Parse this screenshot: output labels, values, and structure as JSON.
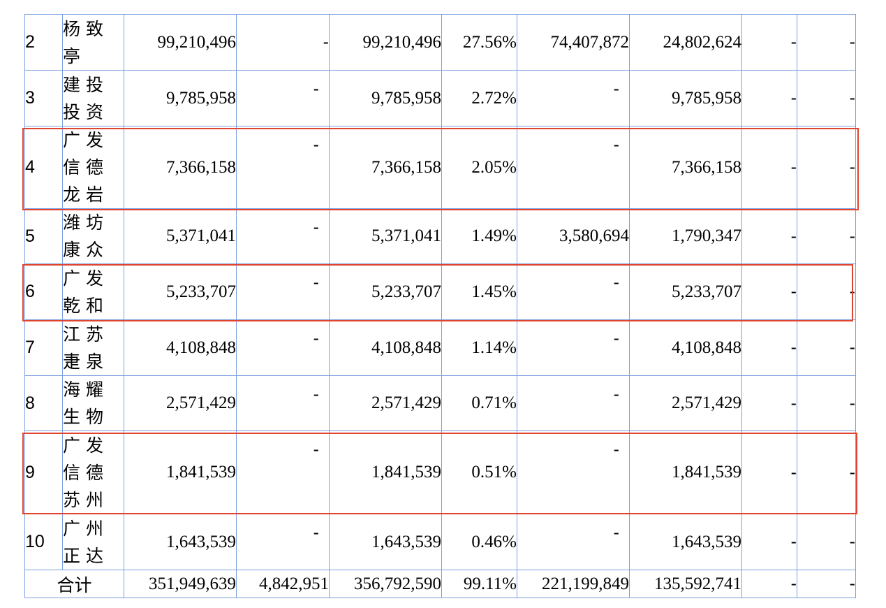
{
  "rows": [
    {
      "seq": "2",
      "name": [
        "杨致",
        "亭"
      ],
      "c1": "99,210,496",
      "c2": "-",
      "c3": "99,210,496",
      "c4": "27.56%",
      "c5": "74,407,872",
      "c6": "24,802,624",
      "c7": "-",
      "c8": "-"
    },
    {
      "seq": "3",
      "name": [
        "建投",
        "投资"
      ],
      "c1": "9,785,958",
      "c2": "-",
      "c3": "9,785,958",
      "c4": "2.72%",
      "c5": "-",
      "c6": "9,785,958",
      "c7": "-",
      "c8": "-"
    },
    {
      "seq": "4",
      "name": [
        "广发",
        "信德",
        "龙岩"
      ],
      "c1": "7,366,158",
      "c2": "-",
      "c3": "7,366,158",
      "c4": "2.05%",
      "c5": "-",
      "c6": "7,366,158",
      "c7": "-",
      "c8": "-"
    },
    {
      "seq": "5",
      "name": [
        "潍坊",
        "康众"
      ],
      "c1": "5,371,041",
      "c2": "-",
      "c3": "5,371,041",
      "c4": "1.49%",
      "c5": "3,580,694",
      "c6": "1,790,347",
      "c7": "-",
      "c8": "-"
    },
    {
      "seq": "6",
      "name": [
        "广发",
        "乾和"
      ],
      "c1": "5,233,707",
      "c2": "-",
      "c3": "5,233,707",
      "c4": "1.45%",
      "c5": "-",
      "c6": "5,233,707",
      "c7": "-",
      "c8": "-"
    },
    {
      "seq": "7",
      "name": [
        "江苏",
        "疌泉"
      ],
      "c1": "4,108,848",
      "c2": "-",
      "c3": "4,108,848",
      "c4": "1.14%",
      "c5": "-",
      "c6": "4,108,848",
      "c7": "-",
      "c8": "-"
    },
    {
      "seq": "8",
      "name": [
        "海耀",
        "生物"
      ],
      "c1": "2,571,429",
      "c2": "-",
      "c3": "2,571,429",
      "c4": "0.71%",
      "c5": "-",
      "c6": "2,571,429",
      "c7": "-",
      "c8": "-"
    },
    {
      "seq": "9",
      "name": [
        "广发",
        "信德",
        "苏州"
      ],
      "c1": "1,841,539",
      "c2": "-",
      "c3": "1,841,539",
      "c4": "0.51%",
      "c5": "-",
      "c6": "1,841,539",
      "c7": "-",
      "c8": "-"
    },
    {
      "seq": "10",
      "name": [
        "广州",
        "正达"
      ],
      "c1": "1,643,539",
      "c2": "-",
      "c3": "1,643,539",
      "c4": "0.46%",
      "c5": "-",
      "c6": "1,643,539",
      "c7": "-",
      "c8": "-"
    }
  ],
  "total": {
    "label": "合计",
    "c1": "351,949,639",
    "c2": "4,842,951",
    "c3": "356,792,590",
    "c4": "99.11%",
    "c5": "221,199,849",
    "c6": "135,592,741",
    "c7": "-",
    "c8": "-"
  },
  "highlight_color": "#e0442e",
  "border_color": "#7b9fe0"
}
